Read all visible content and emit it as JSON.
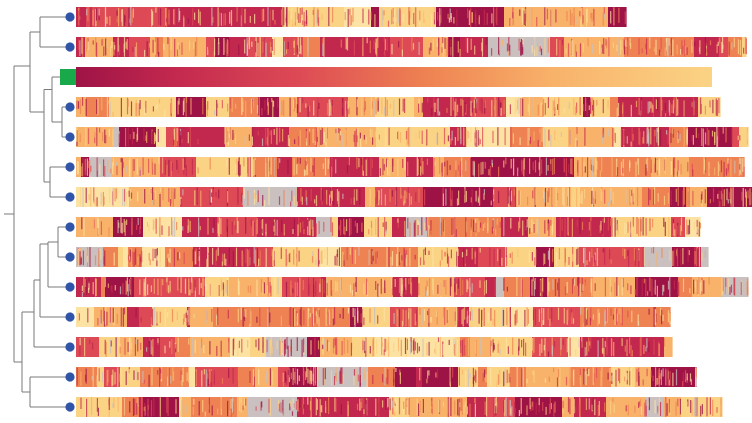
{
  "colors": {
    "dark": "#9e1346",
    "crimson": "#c2284e",
    "red": "#dd4a55",
    "orange": "#ee8252",
    "peach": "#f8b26a",
    "light": "#fbd385",
    "pale": "#fde3a3",
    "gray": "#c9c0bf",
    "tree_line": "#7a7a7a",
    "node_blue": "#2f54a8",
    "reference_green": "#19a84a"
  },
  "reference_index": 2,
  "tracks": [
    {
      "id": "seq-1",
      "node": "circle",
      "length": 550,
      "seed": 11,
      "pattern": "mosaic"
    },
    {
      "id": "seq-2",
      "node": "circle",
      "length": 670,
      "seed": 23,
      "pattern": "mosaic"
    },
    {
      "id": "seq-3",
      "node": "square",
      "length": 636,
      "seed": 0,
      "pattern": "gradient"
    },
    {
      "id": "seq-4",
      "node": "circle",
      "length": 644,
      "seed": 37,
      "pattern": "mosaic"
    },
    {
      "id": "seq-5",
      "node": "circle",
      "length": 672,
      "seed": 41,
      "pattern": "mosaic"
    },
    {
      "id": "seq-6",
      "node": "circle",
      "length": 668,
      "seed": 53,
      "pattern": "mosaic"
    },
    {
      "id": "seq-7",
      "node": "circle",
      "length": 676,
      "seed": 67,
      "pattern": "mosaic"
    },
    {
      "id": "seq-8",
      "node": "circle",
      "length": 624,
      "seed": 71,
      "pattern": "mosaic"
    },
    {
      "id": "seq-9",
      "node": "circle",
      "length": 632,
      "seed": 83,
      "pattern": "mosaic"
    },
    {
      "id": "seq-10",
      "node": "circle",
      "length": 672,
      "seed": 97,
      "pattern": "mosaic"
    },
    {
      "id": "seq-11",
      "node": "circle",
      "length": 594,
      "seed": 101,
      "pattern": "mosaic"
    },
    {
      "id": "seq-12",
      "node": "circle",
      "length": 596,
      "seed": 113,
      "pattern": "mosaic"
    },
    {
      "id": "seq-13",
      "node": "circle",
      "length": 620,
      "seed": 127,
      "pattern": "mosaic"
    },
    {
      "id": "seq-14",
      "node": "circle",
      "length": 646,
      "seed": 131,
      "pattern": "mosaic"
    }
  ]
}
